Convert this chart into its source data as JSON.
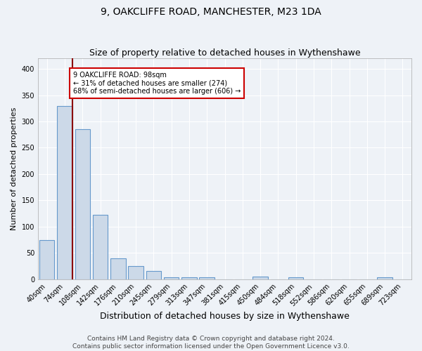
{
  "title": "9, OAKCLIFFE ROAD, MANCHESTER, M23 1DA",
  "subtitle": "Size of property relative to detached houses in Wythenshawe",
  "xlabel": "Distribution of detached houses by size in Wythenshawe",
  "ylabel": "Number of detached properties",
  "bin_labels": [
    "40sqm",
    "74sqm",
    "108sqm",
    "142sqm",
    "176sqm",
    "210sqm",
    "245sqm",
    "279sqm",
    "313sqm",
    "347sqm",
    "381sqm",
    "415sqm",
    "450sqm",
    "484sqm",
    "518sqm",
    "552sqm",
    "586sqm",
    "620sqm",
    "655sqm",
    "689sqm",
    "723sqm"
  ],
  "bar_values": [
    75,
    330,
    285,
    122,
    40,
    25,
    15,
    4,
    3,
    4,
    0,
    0,
    5,
    0,
    3,
    0,
    0,
    0,
    0,
    4,
    0
  ],
  "bar_color": "#ccd9e8",
  "bar_edge_color": "#6699cc",
  "property_line_bin": 1,
  "property_line_color": "#8b0000",
  "annotation_text": "9 OAKCLIFFE ROAD: 98sqm\n← 31% of detached houses are smaller (274)\n68% of semi-detached houses are larger (606) →",
  "annotation_box_color": "white",
  "annotation_box_edge": "#cc0000",
  "ylim": [
    0,
    420
  ],
  "yticks": [
    0,
    50,
    100,
    150,
    200,
    250,
    300,
    350,
    400
  ],
  "footer": "Contains HM Land Registry data © Crown copyright and database right 2024.\nContains public sector information licensed under the Open Government Licence v3.0.",
  "plot_bg_color": "#eef2f7",
  "fig_bg_color": "#eef2f7",
  "grid_color": "#ffffff",
  "title_fontsize": 10,
  "subtitle_fontsize": 9,
  "xlabel_fontsize": 9,
  "ylabel_fontsize": 8,
  "tick_fontsize": 7,
  "footer_fontsize": 6.5
}
